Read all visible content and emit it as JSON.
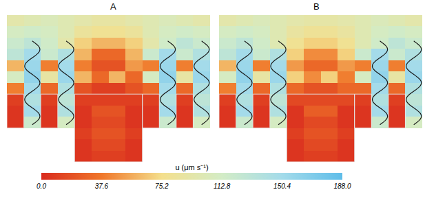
{
  "chart_data": {
    "type": "heatmap",
    "tick_labels": false,
    "panels": [
      {
        "title": "A",
        "cells": [
          [
            95,
            100,
            105,
            100,
            95,
            90,
            90,
            95,
            100,
            105,
            100,
            95
          ],
          [
            110,
            115,
            110,
            100,
            85,
            80,
            80,
            85,
            100,
            110,
            115,
            110
          ],
          [
            120,
            130,
            115,
            95,
            70,
            60,
            60,
            70,
            95,
            115,
            130,
            120
          ],
          [
            130,
            150,
            120,
            140,
            60,
            30,
            30,
            60,
            120,
            150,
            120,
            140
          ],
          [
            60,
            155,
            40,
            150,
            40,
            20,
            20,
            50,
            40,
            155,
            40,
            150
          ],
          [
            110,
            160,
            90,
            155,
            60,
            30,
            60,
            30,
            110,
            160,
            90,
            155
          ],
          [
            40,
            150,
            30,
            140,
            20,
            10,
            10,
            20,
            30,
            150,
            30,
            140
          ],
          [
            10,
            140,
            10,
            130,
            10,
            10,
            10,
            10,
            10,
            140,
            10,
            130
          ],
          [
            5,
            150,
            5,
            140,
            5,
            20,
            20,
            5,
            5,
            150,
            5,
            140
          ],
          [
            5,
            120,
            5,
            110,
            5,
            15,
            15,
            5,
            5,
            120,
            5,
            110
          ],
          [
            null,
            null,
            null,
            null,
            10,
            20,
            20,
            10,
            null,
            null,
            null,
            null
          ],
          [
            null,
            null,
            null,
            null,
            5,
            15,
            15,
            5,
            null,
            null,
            null,
            null
          ],
          [
            null,
            null,
            null,
            null,
            5,
            10,
            10,
            5,
            null,
            null,
            null,
            null
          ]
        ]
      },
      {
        "title": "B",
        "cells": [
          [
            95,
            100,
            105,
            100,
            95,
            92,
            92,
            95,
            100,
            105,
            100,
            95
          ],
          [
            110,
            115,
            110,
            100,
            88,
            82,
            82,
            88,
            100,
            110,
            115,
            110
          ],
          [
            120,
            130,
            115,
            100,
            80,
            70,
            70,
            80,
            100,
            115,
            130,
            120
          ],
          [
            130,
            150,
            120,
            140,
            70,
            45,
            45,
            70,
            120,
            150,
            120,
            140
          ],
          [
            60,
            155,
            40,
            150,
            50,
            30,
            30,
            50,
            40,
            155,
            40,
            150
          ],
          [
            110,
            160,
            90,
            155,
            70,
            45,
            70,
            40,
            110,
            160,
            90,
            155
          ],
          [
            40,
            150,
            30,
            140,
            30,
            20,
            20,
            30,
            30,
            150,
            30,
            140
          ],
          [
            10,
            140,
            10,
            130,
            15,
            15,
            15,
            15,
            10,
            140,
            10,
            130
          ],
          [
            5,
            150,
            5,
            140,
            5,
            25,
            25,
            5,
            5,
            150,
            5,
            140
          ],
          [
            5,
            120,
            5,
            110,
            5,
            15,
            15,
            5,
            5,
            120,
            5,
            110
          ],
          [
            null,
            null,
            null,
            null,
            10,
            20,
            20,
            10,
            null,
            null,
            null,
            null
          ],
          [
            null,
            null,
            null,
            null,
            5,
            15,
            15,
            5,
            null,
            null,
            null,
            null
          ],
          [
            null,
            null,
            null,
            null,
            5,
            10,
            10,
            5,
            null,
            null,
            null,
            null
          ]
        ]
      }
    ],
    "colorbar": {
      "title": "u (μm s⁻¹)",
      "range": [
        0,
        188
      ],
      "ticks": [
        {
          "value": 0,
          "label": "0.0"
        },
        {
          "value": 37.6,
          "label": "37.6"
        },
        {
          "value": 75.2,
          "label": "75.2"
        },
        {
          "value": 112.8,
          "label": "112.8"
        },
        {
          "value": 150.4,
          "label": "150.4"
        },
        {
          "value": 188,
          "label": "188.0"
        }
      ]
    }
  }
}
